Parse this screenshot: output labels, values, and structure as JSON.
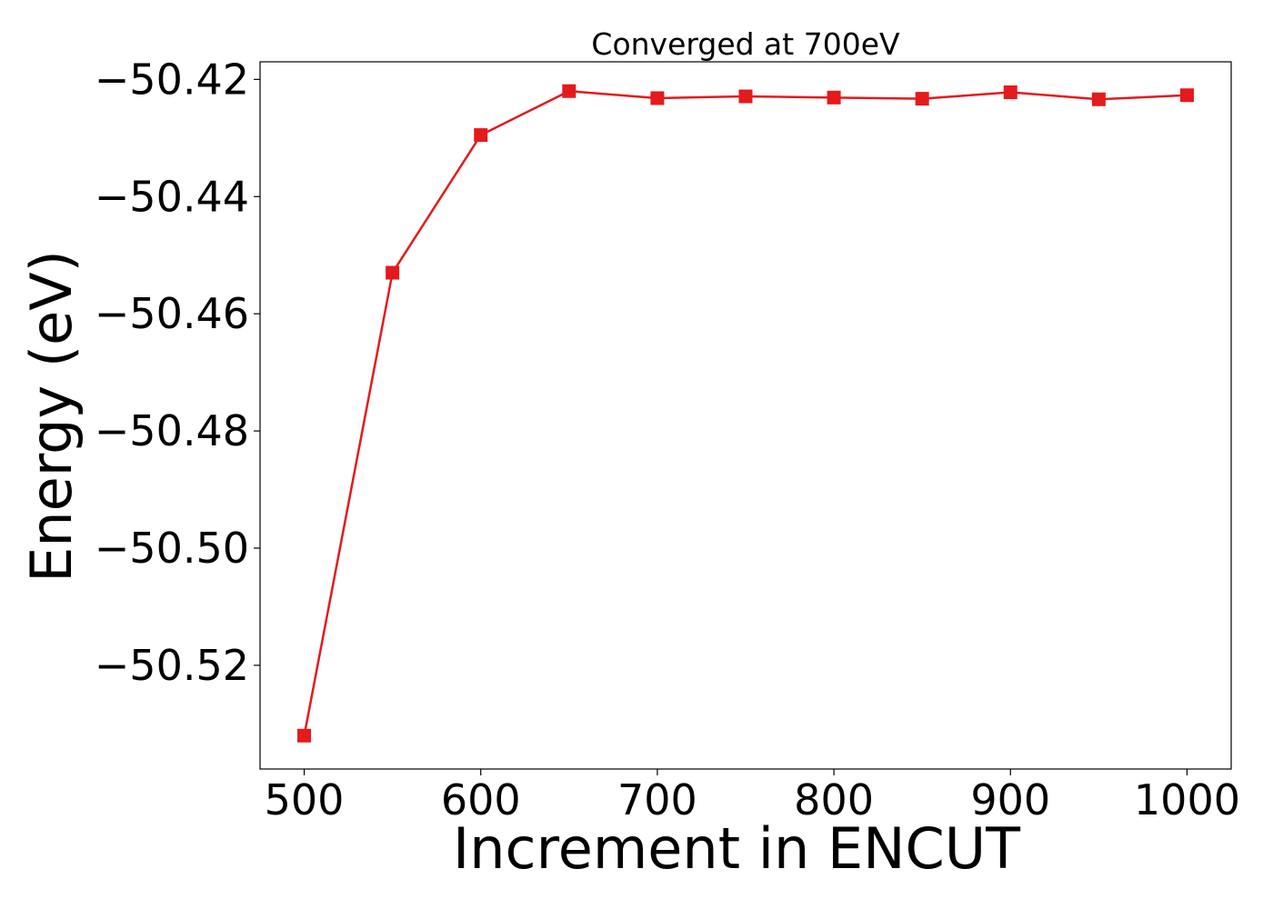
{
  "chart_data": {
    "type": "line",
    "title": "Converged at 700eV",
    "xlabel": "Increment in ENCUT",
    "ylabel": "Energy (eV)",
    "x": [
      500,
      550,
      600,
      650,
      700,
      750,
      800,
      850,
      900,
      950,
      1000
    ],
    "series": [
      {
        "color": "#e41a1c",
        "marker": "square",
        "values": [
          -50.532,
          -50.453,
          -50.4295,
          -50.422,
          -50.4232,
          -50.4229,
          -50.4231,
          -50.4233,
          -50.4222,
          -50.4234,
          -50.4227
        ]
      }
    ],
    "xlim": [
      475,
      1025
    ],
    "ylim": [
      -50.5377,
      -50.417
    ],
    "xticks": [
      500,
      600,
      700,
      800,
      900,
      1000
    ],
    "xtick_labels": [
      "500",
      "600",
      "700",
      "800",
      "900",
      "1000"
    ],
    "yticks": [
      -50.42,
      -50.44,
      -50.46,
      -50.48,
      -50.5,
      -50.52
    ],
    "ytick_labels": [
      "−50.42",
      "−50.44",
      "−50.46",
      "−50.48",
      "−50.50",
      "−50.52"
    ],
    "grid": false,
    "legend": "none"
  }
}
